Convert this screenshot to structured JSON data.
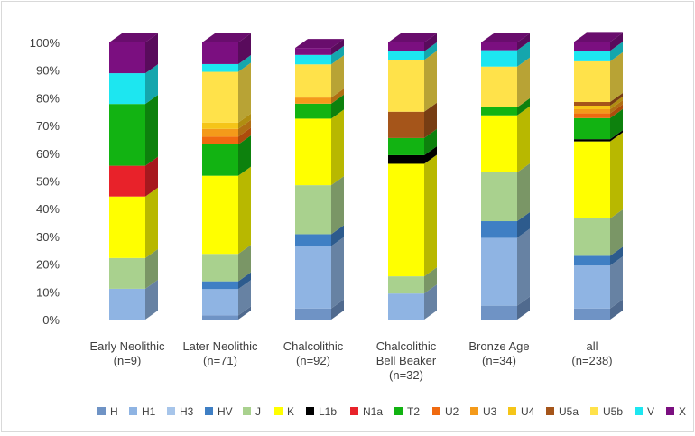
{
  "chart_data": {
    "type": "bar",
    "stacked": true,
    "percent": true,
    "three_d": true,
    "categories": [
      [
        "Early Neolithic",
        "(n=9)"
      ],
      [
        "Later Neolithic",
        "(n=71)"
      ],
      [
        "Chalcolithic",
        "(n=92)"
      ],
      [
        "Chalcolithic",
        "Bell Beaker",
        "(n=32)"
      ],
      [
        "Bronze Age",
        "(n=34)"
      ],
      [
        "all",
        "(n=238)"
      ]
    ],
    "y_ticks": [
      "0%",
      "10%",
      "20%",
      "30%",
      "40%",
      "50%",
      "60%",
      "70%",
      "80%",
      "90%",
      "100%"
    ],
    "ylim": [
      0,
      100
    ],
    "grid": false,
    "legend_position": "bottom",
    "series": [
      {
        "name": "H",
        "color": "#6f93c5",
        "values": [
          0,
          1.5,
          4.0,
          0,
          5.0,
          4.0
        ]
      },
      {
        "name": "H1",
        "color": "#8fb4e3",
        "values": [
          11.1,
          9.5,
          22.5,
          9.4,
          24.5,
          15.5
        ]
      },
      {
        "name": "H3",
        "color": "#a7c5ea",
        "values": [
          0,
          0,
          0,
          0,
          0,
          0
        ]
      },
      {
        "name": "HV",
        "color": "#3f7fc4",
        "values": [
          0,
          2.8,
          4.3,
          0,
          6.0,
          3.5
        ]
      },
      {
        "name": "J",
        "color": "#a9d18e",
        "values": [
          11.1,
          9.9,
          17.7,
          6.2,
          17.6,
          13.5
        ]
      },
      {
        "name": "K",
        "color": "#ffff00",
        "values": [
          22.2,
          28.2,
          24.0,
          40.6,
          20.6,
          27.8
        ]
      },
      {
        "name": "L1b",
        "color": "#000000",
        "values": [
          0,
          0,
          0,
          3.1,
          0,
          0.8
        ]
      },
      {
        "name": "N1a",
        "color": "#e8222a",
        "values": [
          11.1,
          0,
          0,
          0,
          0,
          0
        ]
      },
      {
        "name": "T2",
        "color": "#12b312",
        "values": [
          22.3,
          11.3,
          5.4,
          6.2,
          2.9,
          7.6
        ]
      },
      {
        "name": "U2",
        "color": "#f06a10",
        "values": [
          0,
          2.8,
          0,
          0,
          0,
          1.7
        ]
      },
      {
        "name": "U3",
        "color": "#f49a1a",
        "values": [
          0,
          2.8,
          2.2,
          0,
          0,
          1.5
        ]
      },
      {
        "name": "U4",
        "color": "#f5c518",
        "values": [
          0,
          2.3,
          0,
          0,
          0,
          1.3
        ]
      },
      {
        "name": "U5a",
        "color": "#a5551a",
        "values": [
          0,
          0,
          0,
          9.5,
          0,
          1.3
        ]
      },
      {
        "name": "U5b",
        "color": "#ffe24a",
        "values": [
          0,
          18.3,
          12.0,
          18.7,
          14.7,
          14.7
        ]
      },
      {
        "name": "V",
        "color": "#1de6f0",
        "values": [
          11.1,
          2.8,
          3.4,
          3.1,
          5.9,
          3.8
        ]
      },
      {
        "name": "X",
        "color": "#7b0f80",
        "values": [
          11.1,
          7.8,
          2.5,
          3.2,
          2.8,
          3.2
        ]
      }
    ]
  }
}
